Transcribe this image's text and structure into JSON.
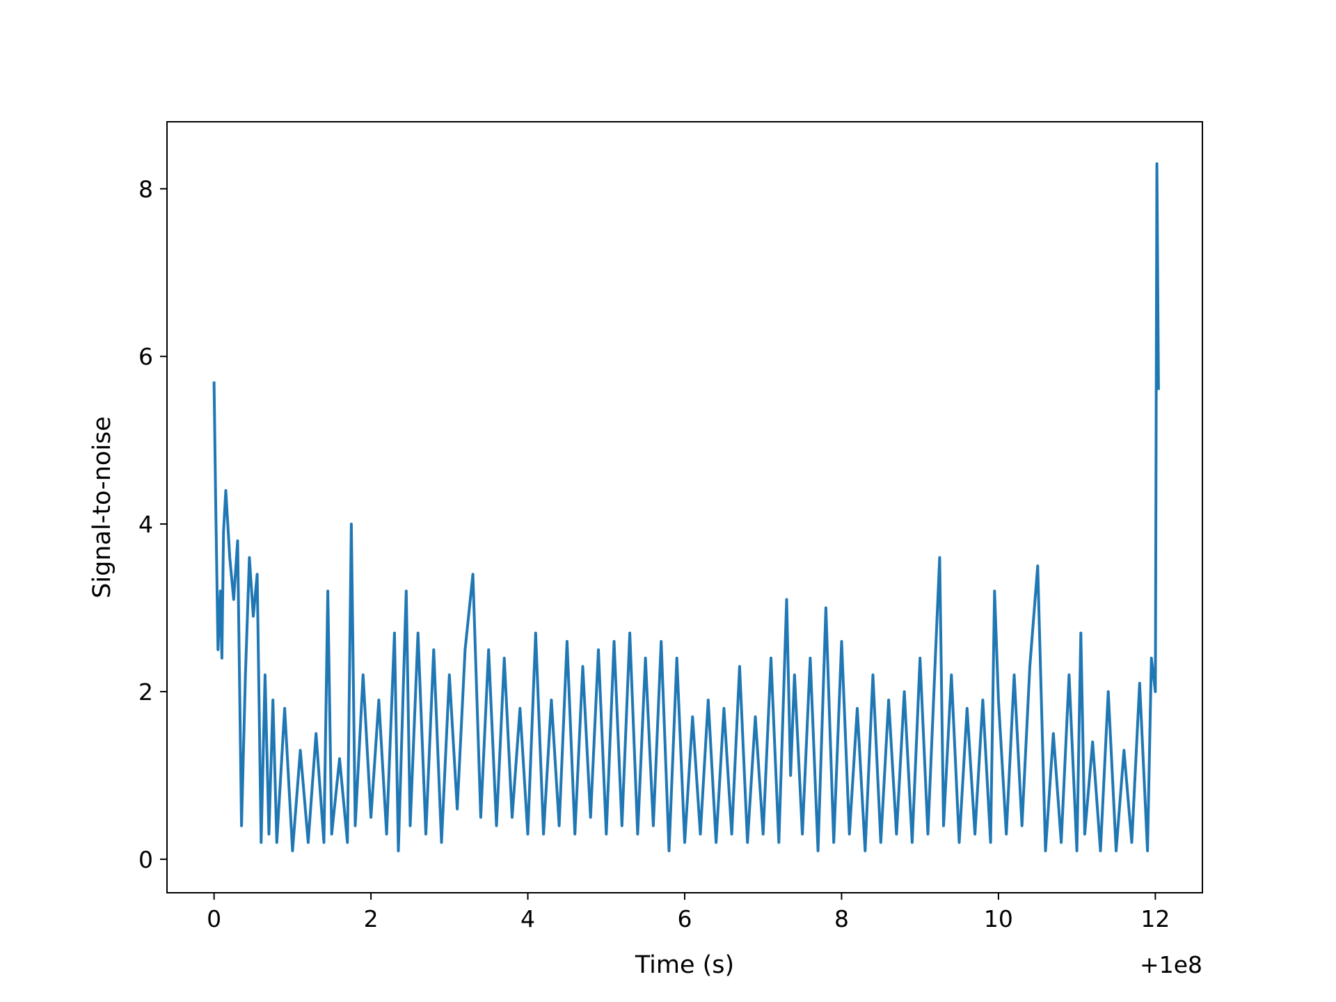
{
  "chart_data": {
    "type": "line",
    "title": "",
    "xlabel": "Time (s)",
    "ylabel": "Signal-to-noise",
    "x_offset_label": "+1e8",
    "xlim": [
      -0.6,
      12.6
    ],
    "ylim": [
      -0.4,
      8.8
    ],
    "xticks": [
      0,
      2,
      4,
      6,
      8,
      10,
      12
    ],
    "yticks": [
      0,
      2,
      4,
      6,
      8
    ],
    "xtick_labels": [
      "0",
      "2",
      "4",
      "6",
      "8",
      "10",
      "12"
    ],
    "ytick_labels": [
      "0",
      "2",
      "4",
      "6",
      "8"
    ],
    "grid": false,
    "line_color": "#1f77b4",
    "series": [
      {
        "x": [
          0.0,
          0.02,
          0.05,
          0.08,
          0.1,
          0.12,
          0.15,
          0.2,
          0.25,
          0.3,
          0.35,
          0.4,
          0.45,
          0.5,
          0.55,
          0.6,
          0.65,
          0.7,
          0.75,
          0.8,
          0.9,
          1.0,
          1.1,
          1.2,
          1.3,
          1.4,
          1.45,
          1.5,
          1.6,
          1.7,
          1.75,
          1.8,
          1.9,
          2.0,
          2.1,
          2.2,
          2.3,
          2.35,
          2.45,
          2.5,
          2.6,
          2.7,
          2.8,
          2.9,
          3.0,
          3.1,
          3.2,
          3.3,
          3.4,
          3.5,
          3.6,
          3.7,
          3.8,
          3.9,
          4.0,
          4.1,
          4.2,
          4.3,
          4.4,
          4.5,
          4.6,
          4.7,
          4.8,
          4.9,
          5.0,
          5.1,
          5.2,
          5.3,
          5.4,
          5.5,
          5.6,
          5.7,
          5.8,
          5.9,
          6.0,
          6.1,
          6.2,
          6.3,
          6.4,
          6.5,
          6.6,
          6.7,
          6.8,
          6.9,
          7.0,
          7.1,
          7.2,
          7.3,
          7.35,
          7.4,
          7.5,
          7.6,
          7.7,
          7.8,
          7.9,
          8.0,
          8.1,
          8.2,
          8.3,
          8.4,
          8.5,
          8.6,
          8.7,
          8.8,
          8.9,
          9.0,
          9.1,
          9.2,
          9.25,
          9.3,
          9.4,
          9.5,
          9.6,
          9.7,
          9.8,
          9.9,
          9.95,
          10.0,
          10.1,
          10.2,
          10.3,
          10.4,
          10.5,
          10.6,
          10.7,
          10.8,
          10.9,
          11.0,
          11.05,
          11.1,
          11.2,
          11.3,
          11.4,
          11.5,
          11.6,
          11.7,
          11.8,
          11.9,
          11.95,
          12.0,
          12.02,
          12.04
        ],
        "y": [
          5.7,
          4.3,
          2.5,
          3.2,
          2.4,
          3.9,
          4.4,
          3.6,
          3.1,
          3.8,
          0.4,
          2.2,
          3.6,
          2.9,
          3.4,
          0.2,
          2.2,
          0.3,
          1.9,
          0.2,
          1.8,
          0.1,
          1.3,
          0.2,
          1.5,
          0.2,
          3.2,
          0.3,
          1.2,
          0.2,
          4.0,
          0.4,
          2.2,
          0.5,
          1.9,
          0.3,
          2.7,
          0.1,
          3.2,
          0.4,
          2.7,
          0.3,
          2.5,
          0.2,
          2.2,
          0.6,
          2.5,
          3.4,
          0.5,
          2.5,
          0.4,
          2.4,
          0.5,
          1.8,
          0.3,
          2.7,
          0.3,
          1.9,
          0.4,
          2.6,
          0.3,
          2.3,
          0.5,
          2.5,
          0.3,
          2.6,
          0.4,
          2.7,
          0.3,
          2.4,
          0.4,
          2.6,
          0.1,
          2.4,
          0.2,
          1.7,
          0.3,
          1.9,
          0.2,
          1.8,
          0.3,
          2.3,
          0.2,
          1.7,
          0.3,
          2.4,
          0.2,
          3.1,
          1.0,
          2.2,
          0.3,
          2.4,
          0.1,
          3.0,
          0.2,
          2.6,
          0.3,
          1.8,
          0.1,
          2.2,
          0.2,
          1.9,
          0.3,
          2.0,
          0.2,
          2.4,
          0.3,
          2.5,
          3.6,
          0.4,
          2.2,
          0.2,
          1.8,
          0.3,
          1.9,
          0.2,
          3.2,
          1.9,
          0.3,
          2.2,
          0.4,
          2.3,
          3.5,
          0.1,
          1.5,
          0.2,
          2.2,
          0.1,
          2.7,
          0.3,
          1.4,
          0.1,
          2.0,
          0.1,
          1.3,
          0.2,
          2.1,
          0.1,
          2.4,
          2.0,
          8.3,
          5.6
        ]
      }
    ]
  }
}
